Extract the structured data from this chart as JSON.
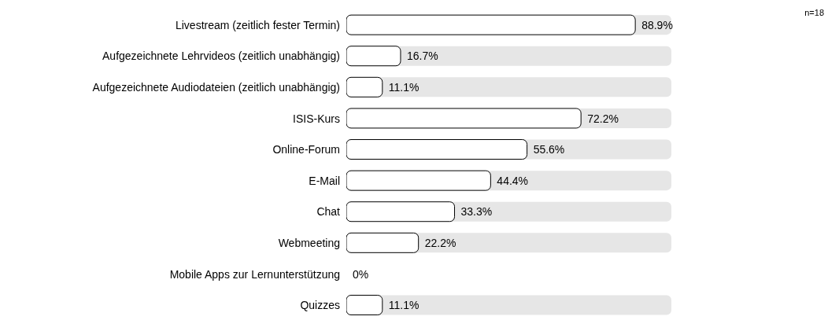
{
  "chart_data": {
    "type": "bar",
    "orientation": "horizontal",
    "categories": [
      "Livestream (zeitlich fester Termin)",
      "Aufgezeichnete Lehrvideos (zeitlich unabhängig)",
      "Aufgezeichnete Audiodateien (zeitlich unabhängig)",
      "ISIS-Kurs",
      "Online-Forum",
      "E-Mail",
      "Chat",
      "Webmeeting",
      "Mobile Apps zur Lernunterstützung",
      "Quizzes"
    ],
    "values": [
      88.9,
      16.7,
      11.1,
      72.2,
      55.6,
      44.4,
      33.3,
      22.2,
      0,
      11.1
    ],
    "value_labels": [
      "88.9%",
      "16.7%",
      "11.1%",
      "72.2%",
      "55.6%",
      "44.4%",
      "33.3%",
      "22.2%",
      "0%",
      "11.1%"
    ],
    "color": "#ffffff",
    "xlim": [
      0,
      100
    ],
    "tick_labels": "y",
    "annotations": [
      "n=18"
    ]
  }
}
